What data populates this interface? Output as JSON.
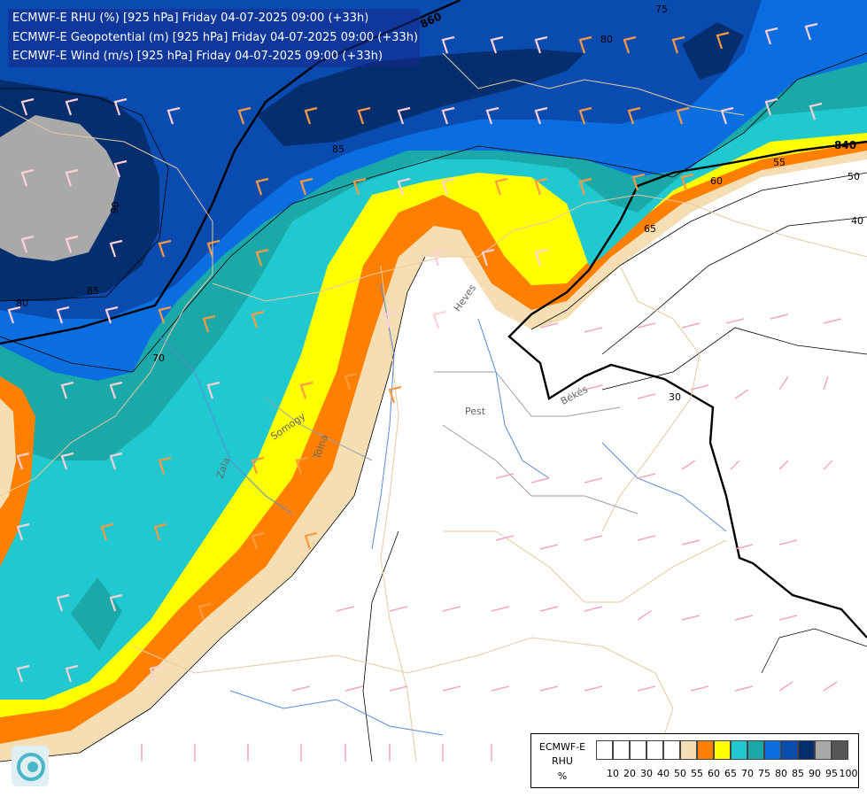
{
  "header": {
    "line1": "ECMWF-E RHU (%) [925 hPa] Friday 04-07-2025 09:00 (+33h)",
    "line2": "ECMWF-E Geopotential (m) [925 hPa] Friday 04-07-2025 09:00 (+33h)",
    "line3": "ECMWF-E Wind (m/s) [925 hPa] Friday 04-07-2025 09:00 (+33h)"
  },
  "legend": {
    "model": "ECMWF-E",
    "param": "RHU",
    "unit": "%",
    "ticks": [
      "10",
      "20",
      "30",
      "40",
      "50",
      "55",
      "60",
      "65",
      "70",
      "75",
      "80",
      "85",
      "90",
      "95",
      "100"
    ],
    "colors": [
      "#ffffff",
      "#ffffff",
      "#ffffff",
      "#ffffff",
      "#ffffff",
      "#f5deb3",
      "#ff8000",
      "#ffff00",
      "#20c8d0",
      "#1aa8a8",
      "#0a6ee0",
      "#0a4bb0",
      "#052e6e",
      "#a9a9a9",
      "#555555"
    ]
  },
  "contour_labels": {
    "c860": "860",
    "c840": "840",
    "r75": "75",
    "r80a": "80",
    "r80b": "80",
    "r85a": "85",
    "r85b": "85",
    "r90": "90",
    "r70": "70",
    "r60": "60",
    "r65": "65",
    "r55": "55",
    "r50": "50",
    "r40": "40",
    "r30": "30"
  },
  "places": {
    "pest": "Pest",
    "bekes": "Békés",
    "somogy": "Somogy",
    "tolna": "Tolna",
    "zala": "Zala",
    "heves": "Heves"
  },
  "colors": {
    "white_band": "#ffffff",
    "wheat": "#f5deb3",
    "orange": "#ff8000",
    "yellow": "#ffff00",
    "cyan": "#20c8d0",
    "teal": "#1aa8a8",
    "blue": "#0a6ee0",
    "midblue": "#0a4bb0",
    "navy": "#052e6e",
    "grey": "#a9a9a9"
  }
}
